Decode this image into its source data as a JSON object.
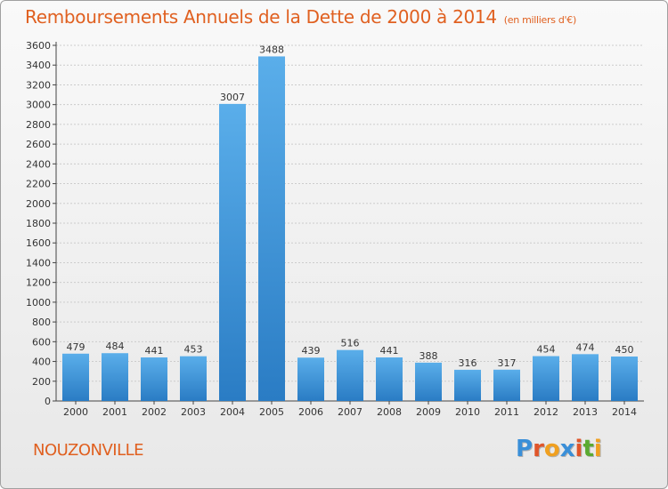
{
  "title": "Remboursements Annuels de la Dette de 2000 à 2014",
  "unit_label": "(en milliers d'€)",
  "city": "NOUZONVILLE",
  "logo": {
    "text": "Proxiti",
    "letters": [
      {
        "ch": "P",
        "color": "#3a8fd8"
      },
      {
        "ch": "r",
        "color": "#e0562a"
      },
      {
        "ch": "o",
        "color": "#f0a020"
      },
      {
        "ch": "x",
        "color": "#3a8fd8"
      },
      {
        "ch": "i",
        "color": "#e0562a"
      },
      {
        "ch": "t",
        "color": "#5aaa30"
      },
      {
        "ch": "i",
        "color": "#f0a020"
      }
    ]
  },
  "colors": {
    "title": "#e06020",
    "bar_light": "#5aaeea",
    "bar_dark": "#2a7cc4",
    "grid": "#cccccc",
    "axis": "#444444"
  },
  "chart_data": {
    "type": "bar",
    "categories": [
      "2000",
      "2001",
      "2002",
      "2003",
      "2004",
      "2005",
      "2006",
      "2007",
      "2008",
      "2009",
      "2010",
      "2011",
      "2012",
      "2013",
      "2014"
    ],
    "values": [
      479,
      484,
      441,
      453,
      3007,
      3488,
      439,
      516,
      441,
      388,
      316,
      317,
      454,
      474,
      450
    ],
    "ylim": [
      0,
      3600
    ],
    "yticks": [
      0,
      200,
      400,
      600,
      800,
      1000,
      1200,
      1400,
      1600,
      1800,
      2000,
      2200,
      2400,
      2600,
      2800,
      3000,
      3200,
      3400,
      3600
    ],
    "grid": true,
    "data_labels": true
  }
}
